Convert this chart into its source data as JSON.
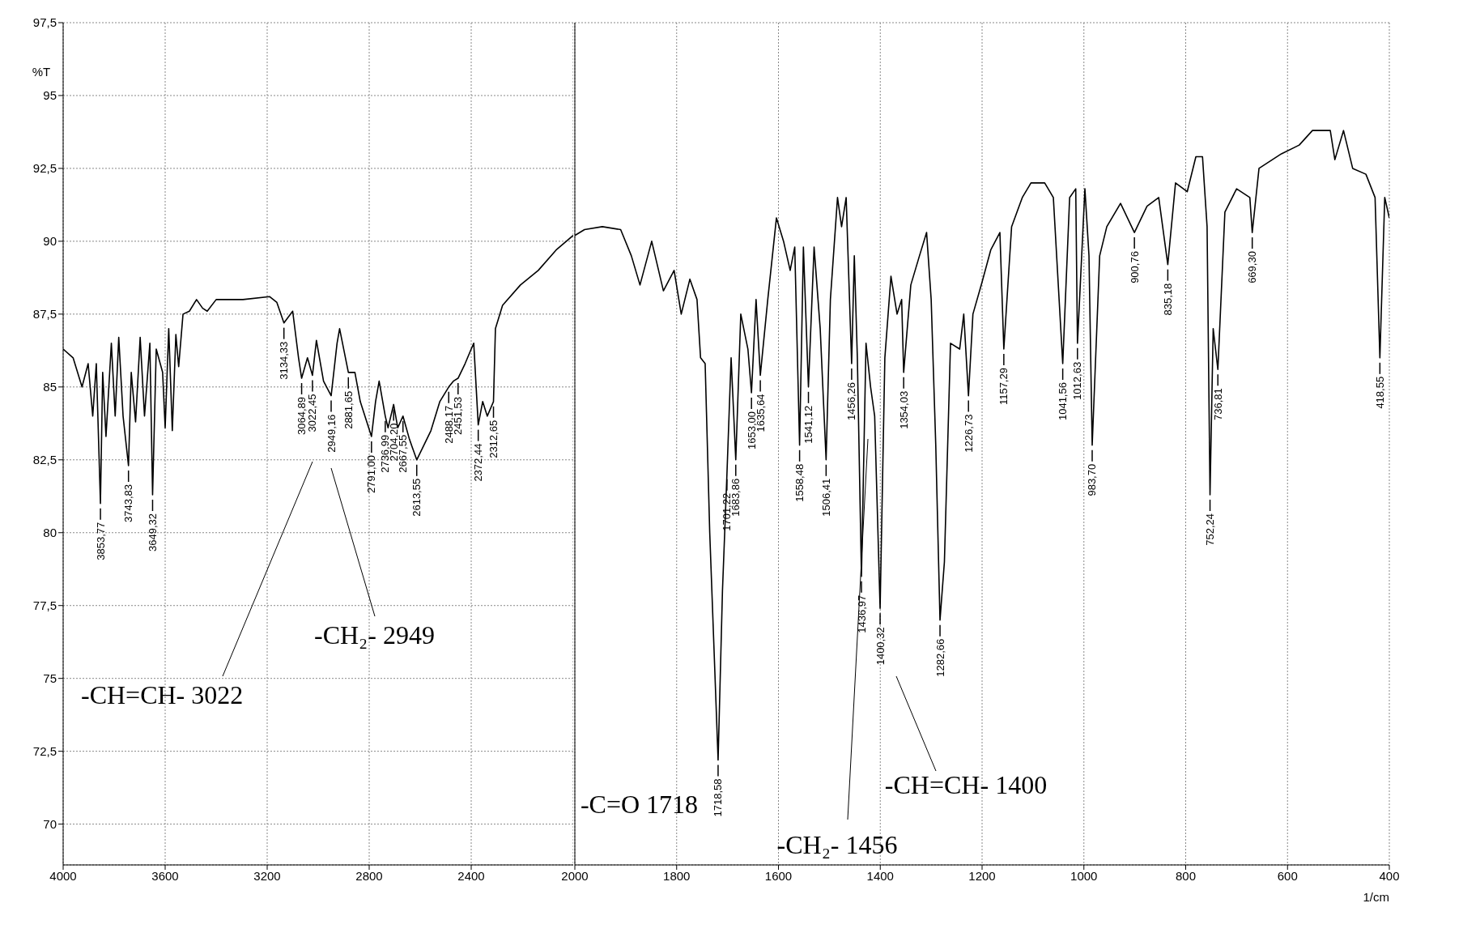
{
  "chart_data": [
    {
      "type": "line",
      "ylabel": "%T",
      "color": "#000000",
      "xlim": [
        4000,
        2000
      ],
      "ylim": [
        68.6,
        97.5
      ],
      "xticks": [
        4000,
        3600,
        3200,
        2800,
        2400
      ],
      "yticks": [
        70,
        {
          "value": 72.5,
          "label": "72,5"
        },
        75,
        {
          "value": 77.5,
          "label": "77,5"
        },
        80,
        {
          "value": 82.5,
          "label": "82,5"
        },
        85,
        {
          "value": 87.5,
          "label": "87,5"
        },
        90,
        {
          "value": 92.5,
          "label": "92,5"
        },
        95,
        {
          "value": 97.5,
          "label": "97,5"
        }
      ],
      "grid": true,
      "x": [
        4000,
        3961,
        3926,
        3902,
        3884,
        3870,
        3853.77,
        3845,
        3832,
        3811,
        3796,
        3782,
        3765,
        3743.83,
        3733,
        3716,
        3698,
        3681,
        3660,
        3649.32,
        3635,
        3610,
        3600,
        3586,
        3572,
        3558,
        3547,
        3530,
        3505,
        3477,
        3453,
        3435,
        3400,
        3295,
        3190,
        3162,
        3134.33,
        3100,
        3077,
        3064.89,
        3042,
        3022.45,
        3007,
        2979,
        2949.16,
        2926,
        2916,
        2881.65,
        2856,
        2835,
        2791,
        2775,
        2761,
        2736.99,
        2726,
        2704.2,
        2688,
        2667.55,
        2642,
        2613.55,
        2558,
        2523,
        2488.17,
        2470,
        2451.53,
        2424,
        2400,
        2390,
        2372.44,
        2355,
        2337,
        2312.65,
        2305,
        2277,
        2207,
        2137,
        2067,
        2000
      ],
      "values": [
        86.3,
        86,
        85,
        85.8,
        84,
        85.8,
        81,
        85.5,
        83.3,
        86.5,
        84,
        86.7,
        84,
        82.3,
        85.5,
        83.8,
        86.7,
        84,
        86.5,
        81.3,
        86.3,
        85.5,
        83.6,
        87,
        83.5,
        86.8,
        85.7,
        87.5,
        87.6,
        88,
        87.7,
        87.6,
        88,
        88,
        88.1,
        87.9,
        87.2,
        87.6,
        86,
        85.3,
        86,
        85.4,
        86.6,
        85.2,
        84.7,
        86.5,
        87,
        85.5,
        85.5,
        84.5,
        83.3,
        84.5,
        85.2,
        84,
        83.6,
        84.4,
        83.6,
        84,
        83.2,
        82.5,
        83.5,
        84.5,
        85,
        85.2,
        85.3,
        85.8,
        86.3,
        86.5,
        83.7,
        84.5,
        84,
        84.5,
        87,
        87.8,
        88.5,
        89,
        89.7,
        90.2
      ],
      "annotations": [
        {
          "text": "3853,77",
          "x": 3853.77,
          "y": 81
        },
        {
          "text": "3743,83",
          "x": 3743.83,
          "y": 82.3
        },
        {
          "text": "3649,32",
          "x": 3649.32,
          "y": 81.3
        },
        {
          "text": "3134,33",
          "x": 3134.33,
          "y": 87.2
        },
        {
          "text": "3064,89",
          "x": 3064.89,
          "y": 85.3
        },
        {
          "text": "3022,45",
          "x": 3022.45,
          "y": 85.4
        },
        {
          "text": "2949,16",
          "x": 2949.16,
          "y": 84.7
        },
        {
          "text": "2881,65",
          "x": 2881.65,
          "y": 85.5
        },
        {
          "text": "2791,00",
          "x": 2791,
          "y": 83.3
        },
        {
          "text": "2736,99",
          "x": 2736.99,
          "y": 84
        },
        {
          "text": "2704,20",
          "x": 2704.2,
          "y": 84.4
        },
        {
          "text": "2667,55",
          "x": 2667.55,
          "y": 84
        },
        {
          "text": "2613,55",
          "x": 2613.55,
          "y": 82.5
        },
        {
          "text": "2488,17",
          "x": 2488.17,
          "y": 85
        },
        {
          "text": "2451,53",
          "x": 2451.53,
          "y": 85.3
        },
        {
          "text": "2372,44",
          "x": 2372.44,
          "y": 83.7
        },
        {
          "text": "2312,65",
          "x": 2312.65,
          "y": 84.5
        },
        "-CH=CH- 3022",
        "-CH₂- 2949"
      ]
    },
    {
      "type": "line",
      "xlabel": "1/cm",
      "color": "#000000",
      "xlim": [
        2000,
        400
      ],
      "ylim": [
        68.6,
        97.5
      ],
      "xticks": [
        2000,
        1800,
        1600,
        1400,
        1200,
        1000,
        800,
        600,
        400
      ],
      "yticks": [
        70,
        72.5,
        75,
        77.5,
        80,
        82.5,
        85,
        87.5,
        90,
        92.5,
        95,
        97.5
      ],
      "grid": true,
      "tick_labels": "x",
      "x": [
        2000,
        1981,
        1946,
        1910,
        1889,
        1872,
        1849,
        1826,
        1805,
        1791,
        1774,
        1760,
        1753,
        1744,
        1735,
        1718.58,
        1710,
        1701.22,
        1693,
        1683.86,
        1674,
        1660,
        1653,
        1644,
        1635.64,
        1621,
        1604,
        1590,
        1577,
        1568,
        1558.48,
        1551,
        1541.12,
        1530,
        1518,
        1506.41,
        1498,
        1484,
        1476,
        1467,
        1456.26,
        1451,
        1445,
        1436.97,
        1428,
        1419,
        1411,
        1400.32,
        1391,
        1379,
        1367,
        1358,
        1354.03,
        1340,
        1323,
        1309,
        1300,
        1291,
        1282.66,
        1274,
        1262,
        1244,
        1236,
        1226.73,
        1218,
        1200,
        1183,
        1165,
        1157.29,
        1142,
        1121,
        1104,
        1077,
        1060,
        1041.56,
        1028,
        1016,
        1012.63,
        998,
        990,
        983.7,
        969,
        955,
        928,
        900.76,
        876,
        853,
        835.18,
        820,
        797,
        780,
        767,
        758,
        752.24,
        746,
        736.81,
        723,
        700,
        674,
        669.3,
        656,
        612,
        577,
        551,
        516,
        507,
        490,
        472,
        446,
        428,
        418.55,
        409,
        400
      ],
      "values": [
        90.2,
        90.4,
        90.5,
        90.4,
        89.5,
        88.5,
        90,
        88.3,
        89,
        87.5,
        88.7,
        88,
        86,
        85.8,
        80,
        72.2,
        78,
        82,
        86,
        82.5,
        87.5,
        86.3,
        84.8,
        88,
        85.4,
        88,
        90.8,
        90,
        89,
        89.8,
        83,
        89.8,
        85,
        89.8,
        87,
        82.5,
        88,
        91.5,
        90.5,
        91.5,
        85.8,
        89.5,
        86,
        78.5,
        86.5,
        85,
        84,
        77.4,
        86,
        88.8,
        87.5,
        88,
        85.5,
        88.5,
        89.5,
        90.3,
        88,
        83,
        77,
        79,
        86.5,
        86.3,
        87.5,
        84.7,
        87.5,
        88.6,
        89.7,
        90.3,
        86.3,
        90.5,
        91.5,
        92,
        92,
        91.5,
        85.8,
        91.5,
        91.8,
        86.5,
        91.8,
        89.5,
        83,
        89.5,
        90.5,
        91.3,
        90.3,
        91.2,
        91.5,
        89.2,
        92,
        91.7,
        92.9,
        92.9,
        90.5,
        81.3,
        87,
        85.6,
        91,
        91.8,
        91.5,
        90.3,
        92.5,
        93,
        93.3,
        93.8,
        93.8,
        92.8,
        93.8,
        92.5,
        92.3,
        91.5,
        86,
        91.5,
        90.8
      ],
      "annotations": [
        {
          "text": "1718,58",
          "x": 1718.58,
          "y": 72.2
        },
        {
          "text": "1701,22",
          "x": 1701.22,
          "y": 82
        },
        {
          "text": "1683,86",
          "x": 1683.86,
          "y": 82.5
        },
        {
          "text": "1653,00",
          "x": 1653,
          "y": 84.8
        },
        {
          "text": "1635,64",
          "x": 1635.64,
          "y": 85.4
        },
        {
          "text": "1558,48",
          "x": 1558.48,
          "y": 83
        },
        {
          "text": "1541,12",
          "x": 1541.12,
          "y": 85
        },
        {
          "text": "1506,41",
          "x": 1506.41,
          "y": 82.5
        },
        {
          "text": "1456,26",
          "x": 1456.26,
          "y": 85.8
        },
        {
          "text": "1436,97",
          "x": 1436.97,
          "y": 78.5
        },
        {
          "text": "1400,32",
          "x": 1400.32,
          "y": 77.4
        },
        {
          "text": "1354,03",
          "x": 1354.03,
          "y": 85.5
        },
        {
          "text": "1282,66",
          "x": 1282.66,
          "y": 77
        },
        {
          "text": "1226,73",
          "x": 1226.73,
          "y": 84.7
        },
        {
          "text": "1157,29",
          "x": 1157.29,
          "y": 86.3
        },
        {
          "text": "1041,56",
          "x": 1041.56,
          "y": 85.8
        },
        {
          "text": "1012,63",
          "x": 1012.63,
          "y": 86.5
        },
        {
          "text": "983,70",
          "x": 983.7,
          "y": 83
        },
        {
          "text": "900,76",
          "x": 900.76,
          "y": 90.3
        },
        {
          "text": "835,18",
          "x": 835.18,
          "y": 89.2
        },
        {
          "text": "752,24",
          "x": 752.24,
          "y": 81.3
        },
        {
          "text": "736,81",
          "x": 736.81,
          "y": 85.6
        },
        {
          "text": "669,30",
          "x": 669.3,
          "y": 90.3
        },
        {
          "text": "418,55",
          "x": 418.55,
          "y": 86
        },
        {
          "text": "-C=O 1718",
          "x": 1718.58,
          "y": 72.2
        },
        "-CH₂- 1456",
        "-CH=CH- 1400"
      ]
    }
  ]
}
